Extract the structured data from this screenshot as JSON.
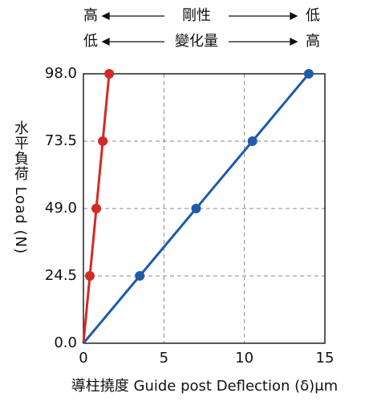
{
  "chart_data": {
    "type": "line",
    "annotations": [
      {
        "left": "高",
        "center": "剛性",
        "right": "低"
      },
      {
        "left": "低",
        "center": "變化量",
        "right": "高"
      }
    ],
    "ylabel": "水平負荷 Load (N)",
    "xlabel": "導柱撓度 Guide post Deflection (δ)μm",
    "xlim": [
      0,
      15
    ],
    "xticks": [
      0,
      5,
      10,
      15
    ],
    "ylim": [
      0,
      98
    ],
    "yticks": [
      {
        "value": 0,
        "label": "0.0"
      },
      24.5,
      {
        "value": 49,
        "label": "49.0"
      },
      73.5,
      {
        "value": 98,
        "label": "98.0"
      }
    ],
    "grid": true,
    "series": [
      {
        "color": "#d42a26",
        "x": [
          0,
          0.4,
          0.8,
          1.2,
          1.6
        ],
        "values": [
          0,
          24.5,
          49,
          73.5,
          98
        ]
      },
      {
        "color": "#1f5ca8",
        "x": [
          0,
          3.5,
          7,
          10.5,
          14
        ],
        "values": [
          0,
          24.5,
          49,
          73.5,
          98
        ]
      }
    ]
  }
}
